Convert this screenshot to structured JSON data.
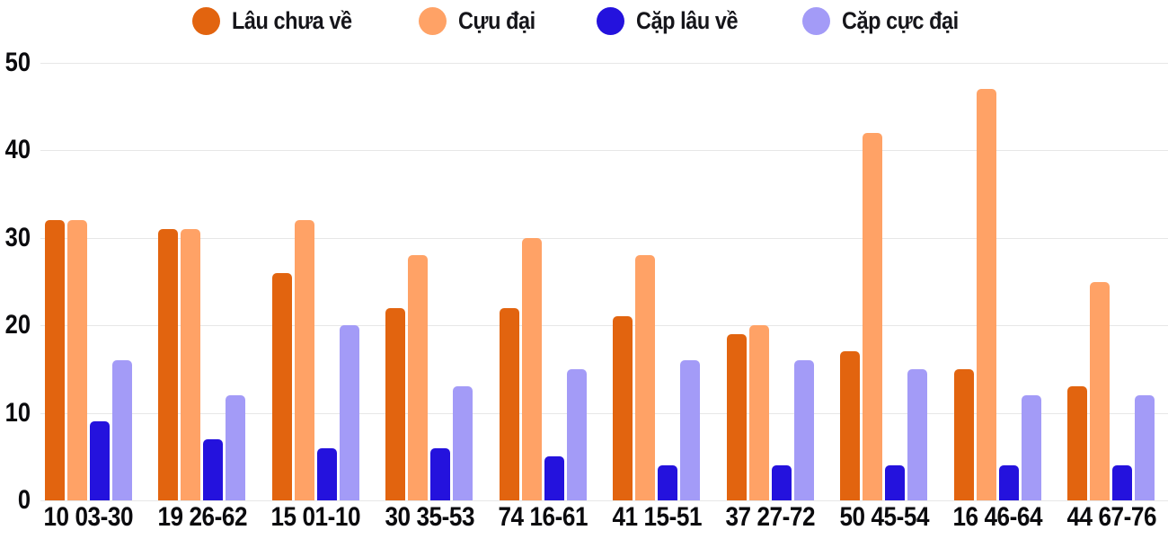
{
  "colors": {
    "grid": "#e7e7e7",
    "axis_text": "#0b0b0e",
    "legend_text": "#15151a",
    "background": "#ffffff"
  },
  "chart_data": {
    "type": "bar",
    "title": "",
    "xlabel": "",
    "ylabel": "",
    "categories": [
      "10 03-30",
      "19 26-62",
      "15 01-10",
      "30 35-53",
      "74 16-61",
      "41 15-51",
      "37 27-72",
      "50 45-54",
      "16 46-64",
      "44 67-76"
    ],
    "series": [
      {
        "name": "Lâu chưa về",
        "color": "#e2640f",
        "values": [
          32,
          31,
          26,
          22,
          22,
          21,
          19,
          17,
          15,
          13
        ]
      },
      {
        "name": "Cựu đại",
        "color": "#ffa266",
        "values": [
          32,
          31,
          32,
          28,
          30,
          28,
          20,
          42,
          47,
          25
        ]
      },
      {
        "name": "Cặp lâu về",
        "color": "#2412dd",
        "values": [
          9,
          7,
          6,
          6,
          5,
          4,
          4,
          4,
          4,
          4
        ]
      },
      {
        "name": "Cặp cực đại",
        "color": "#a39bf7",
        "values": [
          16,
          12,
          20,
          13,
          15,
          16,
          16,
          15,
          12,
          12
        ]
      }
    ],
    "ylim": [
      0,
      50
    ],
    "yticks": [
      0,
      10,
      20,
      30,
      40,
      50
    ],
    "grid": true,
    "legend_position": "top"
  }
}
